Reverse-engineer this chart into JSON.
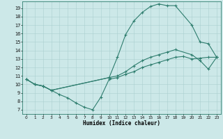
{
  "xlabel": "Humidex (Indice chaleur)",
  "bg_color": "#cce8e8",
  "line_color": "#2e7d6e",
  "grid_color": "#aacfcf",
  "xlim": [
    -0.5,
    23.5
  ],
  "ylim": [
    6.5,
    19.8
  ],
  "xticks": [
    0,
    1,
    2,
    3,
    4,
    5,
    6,
    7,
    8,
    9,
    10,
    11,
    12,
    13,
    14,
    15,
    16,
    17,
    18,
    19,
    20,
    21,
    22,
    23
  ],
  "yticks": [
    7,
    8,
    9,
    10,
    11,
    12,
    13,
    14,
    15,
    16,
    17,
    18,
    19
  ],
  "line1_x": [
    0,
    1,
    2,
    3,
    10,
    11,
    12,
    13,
    14,
    15,
    16,
    17,
    18,
    20,
    21,
    22,
    23
  ],
  "line1_y": [
    10.6,
    10.0,
    9.8,
    9.3,
    10.8,
    13.2,
    15.9,
    17.5,
    18.5,
    19.2,
    19.5,
    19.3,
    19.3,
    17.0,
    15.0,
    14.8,
    13.2
  ],
  "line2_x": [
    0,
    1,
    2,
    3,
    10,
    11,
    12,
    13,
    14,
    15,
    16,
    17,
    18,
    20,
    21,
    22,
    23
  ],
  "line2_y": [
    10.6,
    10.0,
    9.8,
    9.3,
    10.8,
    11.0,
    11.5,
    12.2,
    12.8,
    13.2,
    13.5,
    13.8,
    14.1,
    13.5,
    12.8,
    11.8,
    13.2
  ],
  "line3_x": [
    0,
    1,
    2,
    3,
    4,
    5,
    6,
    7,
    8,
    9,
    10,
    11,
    12,
    13,
    14,
    15,
    16,
    17,
    18,
    19,
    20,
    21,
    22,
    23
  ],
  "line3_y": [
    10.6,
    10.0,
    9.8,
    9.3,
    8.8,
    8.4,
    7.8,
    7.3,
    7.0,
    8.5,
    10.6,
    10.8,
    11.2,
    11.5,
    12.0,
    12.3,
    12.6,
    12.9,
    13.2,
    13.3,
    13.0,
    13.1,
    13.2,
    13.2
  ]
}
